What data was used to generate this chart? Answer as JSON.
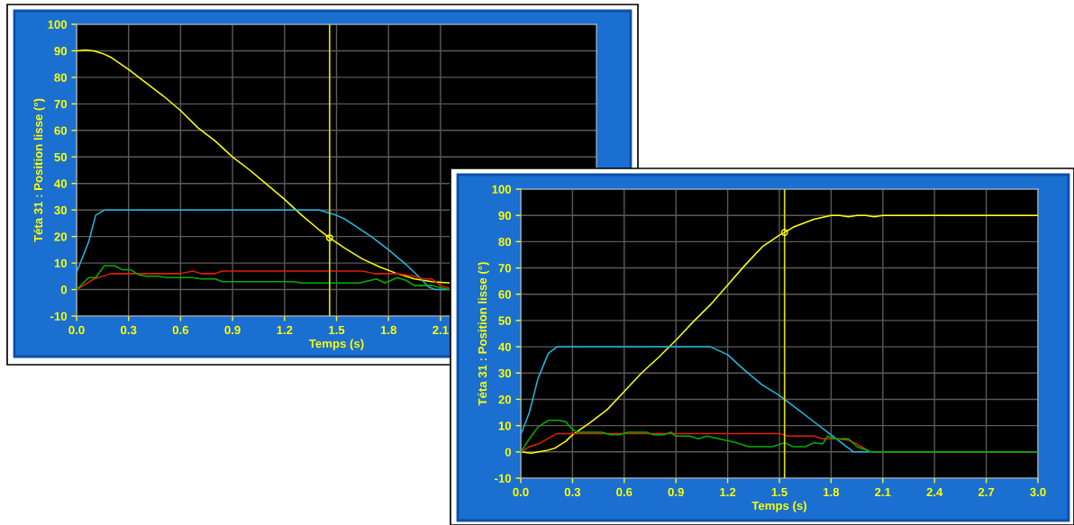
{
  "chart_data": [
    {
      "type": "line",
      "xlabel": "Temps (s)",
      "ylabel": "Téta 31 : Position lisse (°)",
      "xlim": [
        0,
        3.0
      ],
      "ylim": [
        -10,
        100
      ],
      "xticks": [
        {
          "value": 0,
          "label": "0.0"
        },
        {
          "value": 0.3,
          "label": "0.3"
        },
        {
          "value": 0.6,
          "label": "0.6"
        },
        {
          "value": 0.9,
          "label": "0.9"
        },
        {
          "value": 1.2,
          "label": "1.2"
        },
        {
          "value": 1.5,
          "label": "1.5"
        },
        {
          "value": 1.8,
          "label": "1.8"
        },
        {
          "value": 2.1,
          "label": "2.1"
        }
      ],
      "yticks": [
        -10,
        0,
        10,
        20,
        30,
        40,
        50,
        60,
        70,
        80,
        90,
        100
      ],
      "grid": true,
      "line_style": "solid",
      "ref_lines": [
        {
          "axis": "x",
          "value": 1.46,
          "color": "#e0e000"
        }
      ],
      "series": [
        {
          "color": "#ffff00",
          "x": [
            0,
            0.05,
            0.1,
            0.15,
            0.2,
            0.3,
            0.4,
            0.5,
            0.6,
            0.7,
            0.8,
            0.9,
            1.0,
            1.1,
            1.2,
            1.3,
            1.4,
            1.46,
            1.55,
            1.65,
            1.75,
            1.85,
            1.95,
            2.05,
            2.15
          ],
          "values": [
            90,
            90.3,
            90,
            89,
            87.5,
            83,
            78,
            73,
            67.5,
            61,
            56,
            50,
            45,
            39.5,
            34,
            28,
            22.5,
            19.5,
            15.5,
            11.5,
            8.5,
            6,
            4,
            3,
            2.5
          ]
        },
        {
          "color": "#20b8e0",
          "x": [
            0,
            0.07,
            0.11,
            0.16,
            1.4,
            1.5,
            1.55,
            1.7,
            1.8,
            1.9,
            1.98,
            2.03,
            2.07,
            2.15
          ],
          "values": [
            6.5,
            18,
            28,
            30,
            30,
            28,
            26.5,
            20,
            15,
            9.5,
            4.5,
            1,
            0,
            0
          ]
        },
        {
          "color": "#e02000",
          "x": [
            0,
            0.1,
            0.2,
            0.6,
            0.67,
            0.72,
            0.8,
            0.84,
            1.65,
            1.72,
            1.85,
            1.95,
            2.0,
            2.05,
            2.1,
            2.15
          ],
          "values": [
            0,
            4,
            6,
            6,
            7,
            6,
            6,
            7,
            7,
            6,
            6,
            5,
            4,
            4,
            1.5,
            0.5
          ]
        },
        {
          "color": "#00b000",
          "x": [
            0,
            0.07,
            0.11,
            0.16,
            0.22,
            0.26,
            0.31,
            0.36,
            0.4,
            0.47,
            0.52,
            0.67,
            0.72,
            0.8,
            0.84,
            1.25,
            1.3,
            1.63,
            1.73,
            1.78,
            1.85,
            1.9,
            1.95,
            2.05,
            2.15
          ],
          "values": [
            0,
            4.5,
            4.5,
            9,
            9,
            7.5,
            7.5,
            5.5,
            5,
            5,
            4.5,
            4.5,
            4,
            4,
            3,
            3,
            2.5,
            2.5,
            4,
            2.5,
            4.5,
            3.5,
            1.5,
            1.5,
            0
          ]
        },
        {
          "type": "scatter",
          "marker": "circle",
          "color": "#ffff00",
          "x": [
            1.46
          ],
          "values": [
            19.5
          ]
        }
      ]
    },
    {
      "type": "line",
      "xlabel": "Temps (s)",
      "ylabel": "Téta 31 : Position lisse (°)",
      "xlim": [
        0,
        3.0
      ],
      "ylim": [
        -10,
        100
      ],
      "xticks": [
        {
          "value": 0,
          "label": "0.0"
        },
        {
          "value": 0.3,
          "label": "0.3"
        },
        {
          "value": 0.6,
          "label": "0.6"
        },
        {
          "value": 0.9,
          "label": "0.9"
        },
        {
          "value": 1.2,
          "label": "1.2"
        },
        {
          "value": 1.5,
          "label": "1.5"
        },
        {
          "value": 1.8,
          "label": "1.8"
        },
        {
          "value": 2.1,
          "label": "2.1"
        },
        {
          "value": 2.4,
          "label": "2.4"
        },
        {
          "value": 2.7,
          "label": "2.7"
        },
        {
          "value": 3.0,
          "label": "3.0"
        }
      ],
      "yticks": [
        -10,
        0,
        10,
        20,
        30,
        40,
        50,
        60,
        70,
        80,
        90,
        100
      ],
      "grid": true,
      "line_style": "solid",
      "ref_lines": [
        {
          "axis": "x",
          "value": 1.53,
          "color": "#e0e000"
        }
      ],
      "series": [
        {
          "color": "#ffff00",
          "x": [
            0,
            0.06,
            0.15,
            0.2,
            0.26,
            0.3,
            0.4,
            0.5,
            0.6,
            0.7,
            0.8,
            0.9,
            1.0,
            1.1,
            1.2,
            1.3,
            1.4,
            1.5,
            1.53,
            1.58,
            1.7,
            1.8,
            1.85,
            1.9,
            1.95,
            2.0,
            2.05,
            2.1,
            3.0
          ],
          "values": [
            0,
            -0.5,
            0.5,
            1.5,
            4,
            6.5,
            11,
            16,
            23,
            30,
            36,
            42.5,
            49.5,
            56,
            63.5,
            71,
            78,
            82.5,
            83.5,
            85.5,
            88.5,
            90,
            90,
            89.5,
            90,
            90,
            89.5,
            90,
            90
          ]
        },
        {
          "color": "#20b8e0",
          "x": [
            0,
            0.05,
            0.1,
            0.16,
            0.21,
            1.1,
            1.2,
            1.3,
            1.4,
            1.5,
            1.6,
            1.7,
            1.8,
            1.87,
            1.93,
            2.03,
            3.0
          ],
          "values": [
            6.5,
            15,
            28,
            37.5,
            40,
            40,
            37,
            31,
            25.5,
            21.5,
            16.5,
            11.5,
            6.5,
            3,
            0,
            0,
            0
          ]
        },
        {
          "color": "#e02000",
          "x": [
            0,
            0.05,
            0.1,
            0.21,
            1.5,
            1.55,
            1.7,
            1.75,
            1.82,
            1.9,
            1.95,
            2.03,
            3.0
          ],
          "values": [
            0,
            2,
            3,
            7,
            7,
            6,
            6,
            5,
            5,
            4.5,
            3,
            0,
            0
          ]
        },
        {
          "color": "#00b000",
          "x": [
            0,
            0.05,
            0.1,
            0.16,
            0.22,
            0.26,
            0.3,
            0.33,
            0.47,
            0.52,
            0.57,
            0.62,
            0.73,
            0.77,
            0.83,
            0.87,
            0.9,
            0.98,
            1.03,
            1.08,
            1.15,
            1.25,
            1.32,
            1.46,
            1.53,
            1.58,
            1.65,
            1.7,
            1.75,
            1.78,
            1.82,
            1.9,
            1.95,
            2.03,
            3.0
          ],
          "values": [
            0,
            5,
            9.5,
            12,
            12,
            11.5,
            8.5,
            7.5,
            7.5,
            6.5,
            6.5,
            7.5,
            7.5,
            6.5,
            6.5,
            7.5,
            6,
            6,
            5,
            6,
            5,
            3.5,
            2,
            2,
            3.5,
            2,
            2,
            3.5,
            3,
            6,
            5,
            5,
            2,
            0,
            0
          ]
        },
        {
          "type": "scatter",
          "marker": "circle",
          "color": "#ffff00",
          "x": [
            1.53
          ],
          "values": [
            83.5
          ]
        }
      ]
    }
  ]
}
